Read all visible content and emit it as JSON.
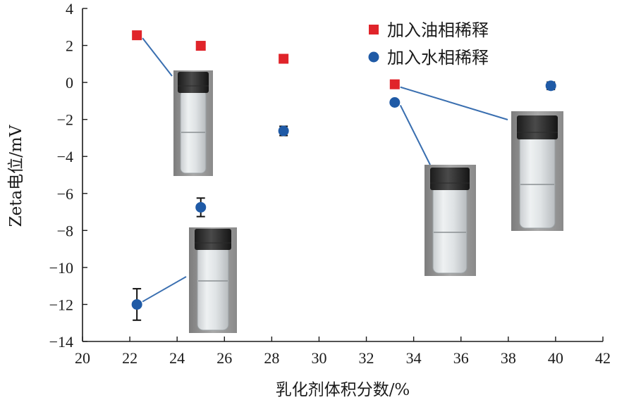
{
  "chart_data": {
    "type": "scatter",
    "xlabel": "乳化剂体积分数/%",
    "ylabel": "Zeta电位/mV",
    "xlim": [
      20,
      42
    ],
    "ylim": [
      -14,
      4
    ],
    "xticks": [
      "20",
      "22",
      "24",
      "26",
      "28",
      "30",
      "32",
      "34",
      "36",
      "38",
      "40",
      "42"
    ],
    "yticks": [
      "4",
      "2",
      "0",
      "−2",
      "−4",
      "−6",
      "−8",
      "−10",
      "−12",
      "−14"
    ],
    "grid": false,
    "legend_position": "top-right",
    "series": [
      {
        "name": "加入油相稀释",
        "marker": "square",
        "color": "#e0242a",
        "points": [
          {
            "x": 22.3,
            "y": 2.55,
            "err": 0.2
          },
          {
            "x": 25.0,
            "y": 1.98,
            "err": 0.22
          },
          {
            "x": 28.5,
            "y": 1.28,
            "err": 0.18
          },
          {
            "x": 33.2,
            "y": -0.1,
            "err": 0.18
          }
        ]
      },
      {
        "name": "加入水相稀释",
        "marker": "circle",
        "color": "#1f5aa6",
        "points": [
          {
            "x": 22.3,
            "y": -12.0,
            "err": 0.85
          },
          {
            "x": 25.0,
            "y": -6.75,
            "err": 0.5
          },
          {
            "x": 28.5,
            "y": -2.62,
            "err": 0.25
          },
          {
            "x": 33.2,
            "y": -1.08,
            "err": 0.12
          },
          {
            "x": 39.8,
            "y": -0.18,
            "err": 0.2
          }
        ]
      }
    ],
    "annotation_color": "#3a6fb0",
    "insets": [
      {
        "name": "vial-photo-1",
        "from_x": 22.3,
        "from_y": 2.55
      },
      {
        "name": "vial-photo-2",
        "from_x": 22.3,
        "from_y": -12.0
      },
      {
        "name": "vial-photo-3",
        "from_x": 33.2,
        "from_y": -1.08
      },
      {
        "name": "vial-photo-4",
        "from_x": 33.2,
        "from_y": -0.1
      }
    ]
  }
}
